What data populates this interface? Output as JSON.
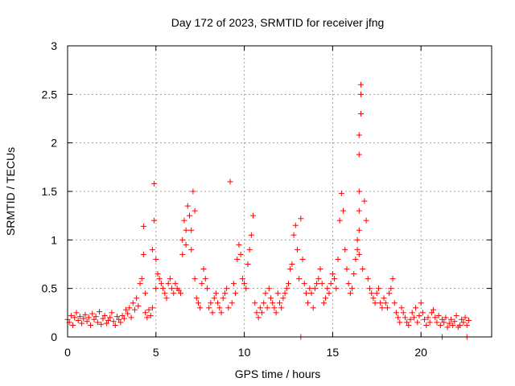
{
  "chart_data": {
    "type": "scatter",
    "title": "Day 172 of 2023, SRMTID for receiver jfng",
    "xlabel": "GPS time / hours",
    "ylabel": "SRMTID / TECUs",
    "xlim": [
      0,
      24
    ],
    "ylim": [
      0,
      3
    ],
    "xticks": [
      0,
      5,
      10,
      15,
      20
    ],
    "xtick_labels": [
      "0",
      "5",
      "10",
      "15",
      "20"
    ],
    "yticks": [
      0,
      0.5,
      1,
      1.5,
      2,
      2.5,
      3
    ],
    "ytick_labels": [
      "0",
      "0.5",
      "1",
      "1.5",
      "2",
      "2.5",
      "3"
    ],
    "grid": true,
    "marker": "plus",
    "color": "#ff0000",
    "series": [
      {
        "name": "SRMTID",
        "x": [
          0.0,
          0.1,
          0.2,
          0.3,
          0.4,
          0.5,
          0.6,
          0.7,
          0.8,
          0.9,
          1.0,
          1.1,
          1.2,
          1.3,
          1.4,
          1.5,
          1.6,
          1.7,
          1.8,
          1.9,
          2.0,
          2.1,
          2.2,
          2.3,
          2.4,
          2.5,
          2.6,
          2.7,
          2.8,
          2.9,
          3.0,
          3.1,
          3.2,
          3.3,
          3.4,
          3.5,
          3.6,
          3.7,
          3.8,
          3.9,
          4.0,
          4.1,
          4.2,
          4.3,
          4.3,
          4.4,
          4.4,
          4.5,
          4.6,
          4.7,
          4.8,
          4.8,
          4.9,
          4.9,
          5.0,
          5.0,
          5.1,
          5.2,
          5.3,
          5.4,
          5.5,
          5.6,
          5.7,
          5.8,
          5.9,
          6.0,
          6.1,
          6.2,
          6.3,
          6.4,
          6.5,
          6.5,
          6.6,
          6.7,
          6.7,
          6.8,
          6.9,
          7.0,
          7.0,
          7.1,
          7.2,
          7.2,
          7.3,
          7.4,
          7.5,
          7.6,
          7.7,
          7.8,
          7.9,
          8.0,
          8.1,
          8.2,
          8.3,
          8.4,
          8.5,
          8.6,
          8.7,
          8.8,
          8.9,
          9.0,
          9.1,
          9.2,
          9.3,
          9.4,
          9.5,
          9.6,
          9.7,
          9.8,
          9.9,
          10.0,
          10.1,
          10.2,
          10.3,
          10.4,
          10.5,
          10.6,
          10.7,
          10.8,
          10.9,
          11.0,
          11.1,
          11.2,
          11.3,
          11.4,
          11.5,
          11.6,
          11.7,
          11.8,
          11.9,
          12.0,
          12.1,
          12.2,
          12.3,
          12.4,
          12.5,
          12.6,
          12.7,
          12.8,
          12.9,
          13.0,
          13.1,
          13.2,
          13.3,
          13.4,
          13.5,
          13.6,
          13.7,
          13.8,
          13.9,
          14.0,
          14.1,
          14.2,
          14.3,
          14.4,
          14.5,
          14.6,
          14.7,
          14.8,
          14.9,
          15.0,
          15.1,
          15.2,
          15.3,
          15.4,
          15.5,
          15.6,
          15.7,
          15.8,
          15.9,
          16.0,
          16.1,
          16.2,
          16.3,
          16.4,
          16.4,
          16.5,
          16.5,
          16.5,
          16.5,
          16.5,
          16.5,
          16.6,
          16.6,
          16.6,
          16.7,
          16.8,
          16.9,
          17.0,
          17.1,
          17.2,
          17.3,
          17.4,
          17.5,
          17.6,
          17.7,
          17.8,
          17.9,
          18.0,
          18.1,
          18.2,
          18.3,
          18.4,
          18.5,
          18.6,
          18.7,
          18.8,
          18.9,
          19.0,
          19.1,
          19.2,
          19.3,
          19.4,
          19.5,
          19.6,
          19.7,
          19.8,
          19.9,
          20.0,
          20.1,
          20.2,
          20.3,
          20.4,
          20.5,
          20.6,
          20.7,
          20.8,
          20.9,
          21.0,
          21.1,
          21.2,
          21.3,
          21.4,
          21.5,
          21.6,
          21.7,
          21.8,
          21.9,
          22.0,
          22.1,
          22.2,
          22.3,
          22.4,
          22.5,
          22.6,
          22.7,
          13.2,
          21.2,
          22.6
        ],
        "y": [
          0.18,
          0.15,
          0.22,
          0.12,
          0.2,
          0.25,
          0.17,
          0.21,
          0.14,
          0.19,
          0.23,
          0.16,
          0.2,
          0.12,
          0.24,
          0.18,
          0.21,
          0.15,
          0.26,
          0.13,
          0.19,
          0.22,
          0.14,
          0.17,
          0.2,
          0.25,
          0.16,
          0.12,
          0.21,
          0.18,
          0.15,
          0.22,
          0.19,
          0.28,
          0.24,
          0.3,
          0.2,
          0.35,
          0.28,
          0.4,
          0.32,
          0.55,
          0.6,
          0.85,
          1.14,
          0.45,
          0.25,
          0.2,
          0.28,
          0.22,
          0.3,
          0.9,
          1.2,
          1.58,
          0.8,
          0.5,
          0.65,
          0.6,
          0.55,
          0.5,
          0.45,
          0.4,
          0.55,
          0.6,
          0.5,
          0.45,
          0.55,
          0.5,
          0.48,
          0.45,
          0.85,
          1.0,
          1.2,
          1.1,
          0.95,
          1.35,
          1.25,
          1.1,
          0.9,
          1.5,
          1.3,
          0.6,
          0.4,
          0.35,
          0.3,
          0.55,
          0.7,
          0.6,
          0.5,
          0.3,
          0.35,
          0.25,
          0.4,
          0.45,
          0.35,
          0.3,
          0.25,
          0.4,
          0.45,
          0.5,
          0.3,
          1.6,
          0.35,
          0.55,
          0.45,
          0.8,
          0.95,
          0.85,
          0.6,
          0.55,
          0.5,
          0.75,
          0.9,
          1.05,
          1.25,
          0.35,
          0.25,
          0.2,
          0.3,
          0.25,
          0.35,
          0.45,
          0.3,
          0.5,
          0.4,
          0.35,
          0.3,
          0.25,
          0.45,
          0.35,
          0.3,
          0.4,
          0.45,
          0.5,
          0.55,
          0.7,
          0.75,
          1.05,
          1.15,
          0.9,
          0.6,
          1.22,
          0.8,
          0.55,
          0.45,
          0.35,
          0.5,
          0.45,
          0.3,
          0.5,
          0.55,
          0.6,
          0.7,
          0.55,
          0.35,
          0.4,
          0.5,
          0.45,
          0.55,
          0.65,
          0.6,
          0.5,
          0.8,
          1.2,
          1.48,
          1.3,
          0.9,
          0.7,
          0.55,
          0.45,
          0.5,
          0.65,
          0.8,
          1.0,
          0.9,
          0.85,
          1.1,
          1.3,
          1.5,
          1.88,
          2.08,
          2.3,
          2.5,
          2.6,
          0.7,
          1.4,
          1.2,
          0.6,
          0.5,
          0.45,
          0.4,
          0.35,
          0.45,
          0.5,
          0.35,
          0.3,
          0.4,
          0.35,
          0.3,
          0.45,
          0.5,
          0.6,
          0.35,
          0.25,
          0.2,
          0.15,
          0.3,
          0.25,
          0.2,
          0.15,
          0.12,
          0.18,
          0.25,
          0.2,
          0.3,
          0.15,
          0.22,
          0.35,
          0.25,
          0.18,
          0.12,
          0.2,
          0.15,
          0.25,
          0.28,
          0.2,
          0.15,
          0.22,
          0.12,
          0.18,
          0.15,
          0.2,
          0.1,
          0.14,
          0.18,
          0.12,
          0.16,
          0.22,
          0.1,
          0.12,
          0.18,
          0.15,
          0.2,
          0.12,
          0.17,
          0.0,
          0.0,
          0.0
        ]
      }
    ]
  }
}
